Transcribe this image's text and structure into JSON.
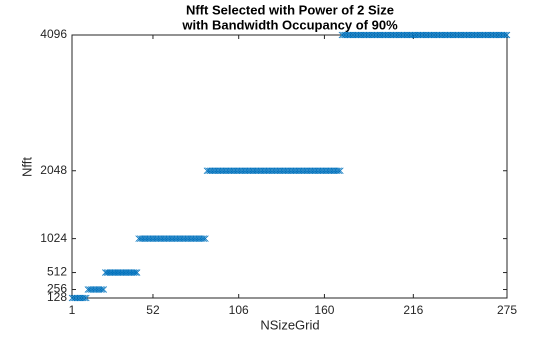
{
  "chart_data": {
    "type": "scatter",
    "title": [
      "Nfft Selected with Power of 2 Size",
      "with Bandwidth Occupancy of 90%"
    ],
    "x_label": "NSizeGrid",
    "y_label": "Nfft",
    "xlim": [
      1,
      275
    ],
    "ylim": [
      128,
      4096
    ],
    "xticks": [
      1,
      52,
      106,
      160,
      216,
      275
    ],
    "yticks": [
      128,
      256,
      512,
      1024,
      2048,
      4096
    ],
    "marker": "x",
    "color": "#0072bd",
    "x": [
      1,
      2,
      3,
      4,
      5,
      6,
      7,
      8,
      9,
      10,
      11,
      12,
      13,
      14,
      15,
      16,
      17,
      18,
      19,
      20,
      21,
      22,
      23,
      24,
      25,
      26,
      27,
      28,
      29,
      30,
      31,
      32,
      33,
      34,
      35,
      36,
      37,
      38,
      39,
      40,
      41,
      42,
      43,
      44,
      45,
      46,
      47,
      48,
      49,
      50,
      51,
      52,
      53,
      54,
      55,
      56,
      57,
      58,
      59,
      60,
      61,
      62,
      63,
      64,
      65,
      66,
      67,
      68,
      69,
      70,
      71,
      72,
      73,
      74,
      75,
      76,
      77,
      78,
      79,
      80,
      81,
      82,
      83,
      84,
      85,
      86,
      87,
      88,
      89,
      90,
      91,
      92,
      93,
      94,
      95,
      96,
      97,
      98,
      99,
      100,
      101,
      102,
      103,
      104,
      105,
      106,
      107,
      108,
      109,
      110,
      111,
      112,
      113,
      114,
      115,
      116,
      117,
      118,
      119,
      120,
      121,
      122,
      123,
      124,
      125,
      126,
      127,
      128,
      129,
      130,
      131,
      132,
      133,
      134,
      135,
      136,
      137,
      138,
      139,
      140,
      141,
      142,
      143,
      144,
      145,
      146,
      147,
      148,
      149,
      150,
      151,
      152,
      153,
      154,
      155,
      156,
      157,
      158,
      159,
      160,
      161,
      162,
      163,
      164,
      165,
      166,
      167,
      168,
      169,
      170,
      171,
      172,
      173,
      174,
      175,
      176,
      177,
      178,
      179,
      180,
      181,
      182,
      183,
      184,
      185,
      186,
      187,
      188,
      189,
      190,
      191,
      192,
      193,
      194,
      195,
      196,
      197,
      198,
      199,
      200,
      201,
      202,
      203,
      204,
      205,
      206,
      207,
      208,
      209,
      210,
      211,
      212,
      213,
      214,
      215,
      216,
      217,
      218,
      219,
      220,
      221,
      222,
      223,
      224,
      225,
      226,
      227,
      228,
      229,
      230,
      231,
      232,
      233,
      234,
      235,
      236,
      237,
      238,
      239,
      240,
      241,
      242,
      243,
      244,
      245,
      246,
      247,
      248,
      249,
      250,
      251,
      252,
      253,
      254,
      255,
      256,
      257,
      258,
      259,
      260,
      261,
      262,
      263,
      264,
      265,
      266,
      267,
      268,
      269,
      270,
      271,
      272,
      273,
      274,
      275
    ],
    "values": [
      128,
      128,
      128,
      128,
      128,
      128,
      128,
      128,
      128,
      128,
      256,
      256,
      256,
      256,
      256,
      256,
      256,
      256,
      256,
      256,
      256,
      512,
      512,
      512,
      512,
      512,
      512,
      512,
      512,
      512,
      512,
      512,
      512,
      512,
      512,
      512,
      512,
      512,
      512,
      512,
      512,
      512,
      1024,
      1024,
      1024,
      1024,
      1024,
      1024,
      1024,
      1024,
      1024,
      1024,
      1024,
      1024,
      1024,
      1024,
      1024,
      1024,
      1024,
      1024,
      1024,
      1024,
      1024,
      1024,
      1024,
      1024,
      1024,
      1024,
      1024,
      1024,
      1024,
      1024,
      1024,
      1024,
      1024,
      1024,
      1024,
      1024,
      1024,
      1024,
      1024,
      1024,
      1024,
      1024,
      1024,
      2048,
      2048,
      2048,
      2048,
      2048,
      2048,
      2048,
      2048,
      2048,
      2048,
      2048,
      2048,
      2048,
      2048,
      2048,
      2048,
      2048,
      2048,
      2048,
      2048,
      2048,
      2048,
      2048,
      2048,
      2048,
      2048,
      2048,
      2048,
      2048,
      2048,
      2048,
      2048,
      2048,
      2048,
      2048,
      2048,
      2048,
      2048,
      2048,
      2048,
      2048,
      2048,
      2048,
      2048,
      2048,
      2048,
      2048,
      2048,
      2048,
      2048,
      2048,
      2048,
      2048,
      2048,
      2048,
      2048,
      2048,
      2048,
      2048,
      2048,
      2048,
      2048,
      2048,
      2048,
      2048,
      2048,
      2048,
      2048,
      2048,
      2048,
      2048,
      2048,
      2048,
      2048,
      2048,
      2048,
      2048,
      2048,
      2048,
      2048,
      2048,
      2048,
      2048,
      2048,
      2048,
      4096,
      4096,
      4096,
      4096,
      4096,
      4096,
      4096,
      4096,
      4096,
      4096,
      4096,
      4096,
      4096,
      4096,
      4096,
      4096,
      4096,
      4096,
      4096,
      4096,
      4096,
      4096,
      4096,
      4096,
      4096,
      4096,
      4096,
      4096,
      4096,
      4096,
      4096,
      4096,
      4096,
      4096,
      4096,
      4096,
      4096,
      4096,
      4096,
      4096,
      4096,
      4096,
      4096,
      4096,
      4096,
      4096,
      4096,
      4096,
      4096,
      4096,
      4096,
      4096,
      4096,
      4096,
      4096,
      4096,
      4096,
      4096,
      4096,
      4096,
      4096,
      4096,
      4096,
      4096,
      4096,
      4096,
      4096,
      4096,
      4096,
      4096,
      4096,
      4096,
      4096,
      4096,
      4096,
      4096,
      4096,
      4096,
      4096,
      4096,
      4096,
      4096,
      4096,
      4096,
      4096,
      4096,
      4096,
      4096,
      4096,
      4096,
      4096,
      4096,
      4096,
      4096,
      4096,
      4096,
      4096,
      4096,
      4096,
      4096,
      4096,
      4096,
      4096,
      4096,
      4096
    ]
  }
}
